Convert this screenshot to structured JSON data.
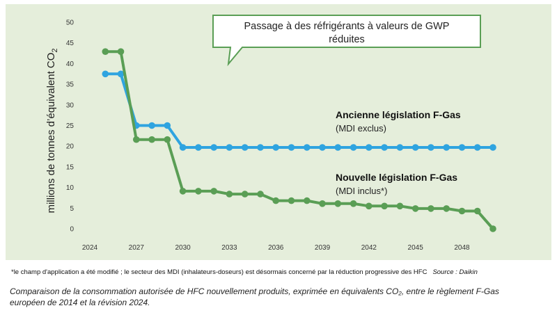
{
  "chart_data": {
    "type": "line",
    "ylabel": "millions de tonnes d’équivalent CO",
    "ylabel_sub": "2",
    "ylim": [
      0,
      50
    ],
    "xlim": [
      2024,
      2050
    ],
    "x_ticks": [
      2024,
      2027,
      2030,
      2033,
      2036,
      2039,
      2042,
      2045,
      2048
    ],
    "y_ticks": [
      0,
      5,
      10,
      15,
      20,
      25,
      30,
      35,
      40,
      45,
      50
    ],
    "grid": false,
    "colors": {
      "old": "#2fa4e0",
      "new": "#5a9e55",
      "panel": "#e5eedb"
    },
    "series": [
      {
        "id": "old",
        "label_main": "Ancienne législation F-Gas",
        "label_sub": "(MDI exclus)",
        "x": [
          2025,
          2026,
          2027,
          2028,
          2029,
          2030,
          2031,
          2032,
          2033,
          2034,
          2035,
          2036,
          2037,
          2038,
          2039,
          2040,
          2041,
          2042,
          2043,
          2044,
          2045,
          2046,
          2047,
          2048,
          2049,
          2050
        ],
        "y": [
          37.5,
          37.5,
          25,
          25,
          25,
          19.7,
          19.7,
          19.7,
          19.7,
          19.7,
          19.7,
          19.7,
          19.7,
          19.7,
          19.7,
          19.7,
          19.7,
          19.7,
          19.7,
          19.7,
          19.7,
          19.7,
          19.7,
          19.7,
          19.7,
          19.7
        ]
      },
      {
        "id": "new",
        "label_main": "Nouvelle législation F-Gas",
        "label_sub": "(MDI inclus*)",
        "x": [
          2025,
          2026,
          2027,
          2028,
          2029,
          2030,
          2031,
          2032,
          2033,
          2034,
          2035,
          2036,
          2037,
          2038,
          2039,
          2040,
          2041,
          2042,
          2043,
          2044,
          2045,
          2046,
          2047,
          2048,
          2049,
          2050
        ],
        "y": [
          42.9,
          42.9,
          21.6,
          21.6,
          21.6,
          9.1,
          9.1,
          9.1,
          8.4,
          8.4,
          8.4,
          6.8,
          6.8,
          6.8,
          6.1,
          6.1,
          6.1,
          5.5,
          5.5,
          5.5,
          4.9,
          4.9,
          4.9,
          4.3,
          4.3,
          0
        ]
      }
    ],
    "annotation": {
      "line1": "Passage à des réfrigérants à valeurs de GWP",
      "line2": "réduites"
    }
  },
  "footnote": {
    "text": "*le champ d'application a été modifié ; le secteur des MDI (inhalateurs-doseurs) est désormais concerné par la réduction progressive des HFC",
    "source": "Source : Daikin"
  },
  "caption": {
    "line1": "Comparaison de la consommation autorisée de HFC nouvellement produits, exprimée en équivalents CO₂, entre le règlement F-Gas",
    "line2": "européen de 2014 et la révision 2024."
  }
}
